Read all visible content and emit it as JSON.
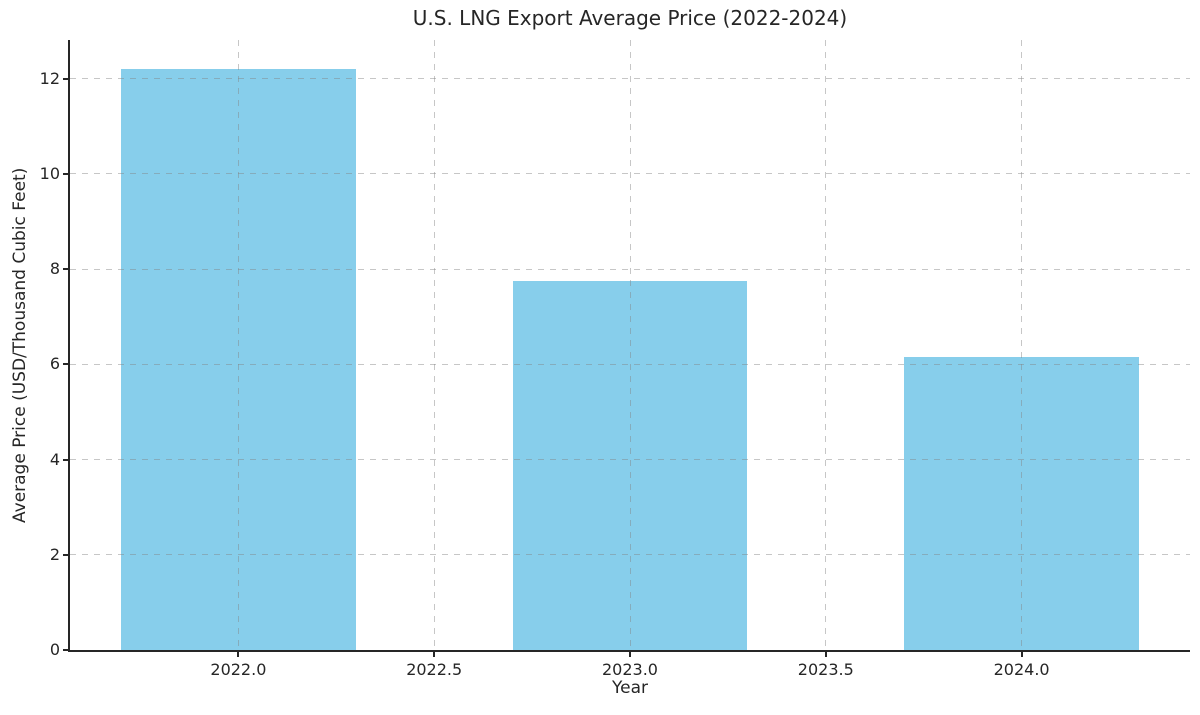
{
  "chart_data": {
    "type": "bar",
    "title": "U.S. LNG Export Average Price (2022-2024)",
    "xlabel": "Year",
    "ylabel": "Average Price (USD/Thousand Cubic Feet)",
    "categories": [
      2022,
      2023,
      2024
    ],
    "values": [
      12.2,
      7.75,
      6.15
    ],
    "bar_width": 0.6,
    "bar_color": "#87CEEB",
    "xlim": [
      2021.57,
      2024.43
    ],
    "ylim": [
      0,
      12.81
    ],
    "x_ticks": [
      2022.0,
      2022.5,
      2023.0,
      2023.5,
      2024.0
    ],
    "x_tick_labels": [
      "2022.0",
      "2022.5",
      "2023.0",
      "2023.5",
      "2024.0"
    ],
    "y_ticks": [
      0,
      2,
      4,
      6,
      8,
      10,
      12
    ],
    "y_tick_labels": [
      "0",
      "2",
      "4",
      "6",
      "8",
      "10",
      "12"
    ],
    "grid": {
      "visible": true,
      "style": "dashed",
      "drawn_over_bars": true
    },
    "colors": {
      "grid": "rgba(130,130,130,0.45)",
      "axis": "#262626",
      "text": "#262626",
      "background": "#ffffff"
    }
  }
}
